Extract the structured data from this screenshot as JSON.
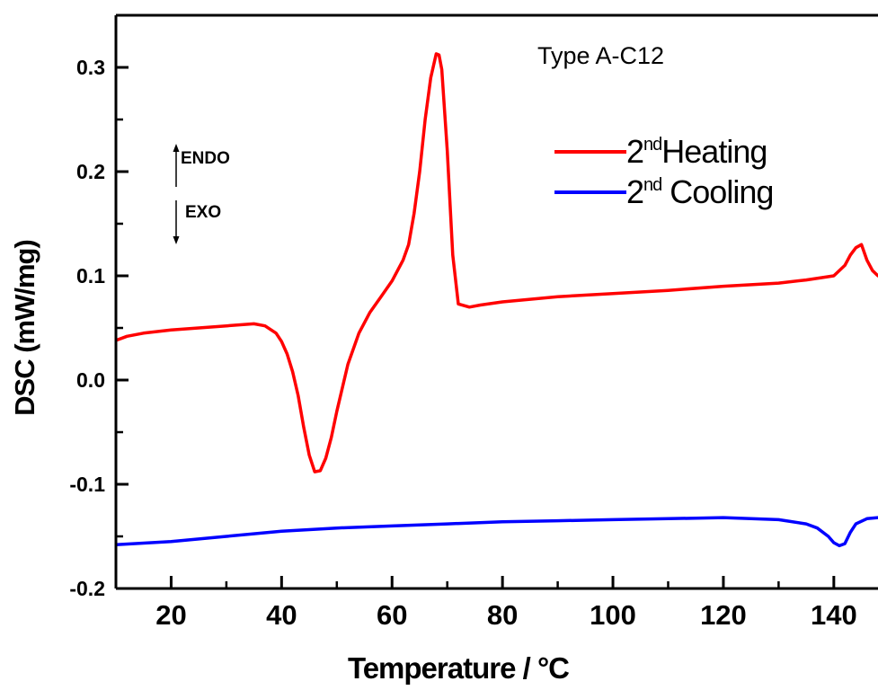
{
  "chart_data": {
    "type": "line",
    "title": "",
    "sample_label": "Type A-C12",
    "xlabel": "Temperature / °C",
    "ylabel": "DSC (mW/mg)",
    "xlim": [
      10,
      148
    ],
    "ylim": [
      -0.2,
      0.35
    ],
    "x_ticks": [
      20,
      40,
      60,
      80,
      100,
      120,
      140
    ],
    "x_tick_labels": [
      "20",
      "40",
      "60",
      "80",
      "100",
      "120",
      "140"
    ],
    "y_ticks": [
      -0.2,
      -0.1,
      0.0,
      0.1,
      0.2,
      0.3
    ],
    "y_tick_labels": [
      "-0.2",
      "-0.1",
      "0.0",
      "0.1",
      "0.2",
      "0.3"
    ],
    "grid": false,
    "legend_position": "top-right",
    "annotations": {
      "endo": "ENDO",
      "exo": "EXO"
    },
    "series": [
      {
        "name": "Heating",
        "legend_number": "2",
        "legend_superscript": "nd",
        "legend_word": "Heating",
        "color": "#ff0000",
        "x": [
          10,
          12,
          15,
          20,
          25,
          30,
          35,
          37,
          39,
          40,
          41,
          42,
          43,
          44,
          45,
          46,
          47,
          48,
          49,
          50,
          52,
          54,
          56,
          58,
          60,
          62,
          63,
          64,
          65,
          66,
          67,
          68,
          68.5,
          69,
          70,
          71,
          72,
          74,
          76,
          80,
          90,
          100,
          110,
          120,
          130,
          135,
          140,
          142,
          143,
          144,
          145,
          146,
          147,
          148
        ],
        "y": [
          0.038,
          0.042,
          0.045,
          0.048,
          0.05,
          0.052,
          0.054,
          0.052,
          0.045,
          0.037,
          0.025,
          0.008,
          -0.015,
          -0.045,
          -0.072,
          -0.088,
          -0.087,
          -0.075,
          -0.055,
          -0.03,
          0.015,
          0.045,
          0.065,
          0.08,
          0.095,
          0.115,
          0.13,
          0.16,
          0.2,
          0.25,
          0.29,
          0.313,
          0.312,
          0.298,
          0.22,
          0.12,
          0.073,
          0.07,
          0.072,
          0.075,
          0.08,
          0.083,
          0.086,
          0.09,
          0.093,
          0.096,
          0.1,
          0.11,
          0.12,
          0.127,
          0.13,
          0.115,
          0.105,
          0.1
        ]
      },
      {
        "name": "Cooling",
        "legend_number": "2",
        "legend_superscript": "nd",
        "legend_word": " Cooling",
        "color": "#0000ff",
        "x": [
          10,
          20,
          30,
          40,
          50,
          60,
          70,
          80,
          90,
          100,
          110,
          120,
          125,
          130,
          135,
          137,
          139,
          140,
          141,
          142,
          143,
          144,
          146,
          148
        ],
        "y": [
          -0.158,
          -0.155,
          -0.15,
          -0.145,
          -0.142,
          -0.14,
          -0.138,
          -0.136,
          -0.135,
          -0.134,
          -0.133,
          -0.132,
          -0.133,
          -0.134,
          -0.138,
          -0.142,
          -0.15,
          -0.156,
          -0.159,
          -0.157,
          -0.146,
          -0.138,
          -0.133,
          -0.132
        ]
      }
    ]
  }
}
